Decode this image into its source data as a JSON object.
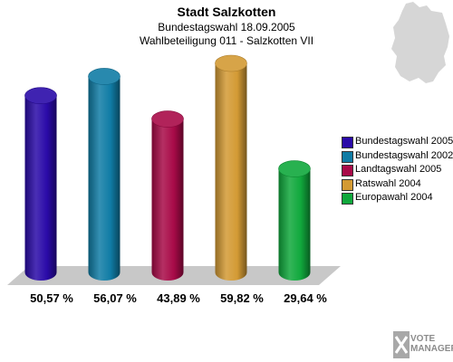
{
  "header": {
    "title": "Stadt Salzkotten",
    "subtitle1": "Bundestagswahl 18.09.2005",
    "subtitle2": "Wahlbeteiligung 011 - Salzkotten VII"
  },
  "chart_data": {
    "type": "bar",
    "title": "Stadt Salzkotten",
    "categories": [
      "Bundestagswahl 2005",
      "Bundestagswahl 2002",
      "Landtagswahl 2005",
      "Ratswahl 2004",
      "Europawahl 2004"
    ],
    "values": [
      50.57,
      56.07,
      43.89,
      59.82,
      29.64
    ],
    "value_labels": [
      "50,57 %",
      "56,07 %",
      "43,89 %",
      "59,82 %",
      "29,64 %"
    ],
    "colors": [
      "#2a0aa8",
      "#107ca5",
      "#a80a48",
      "#d39a34",
      "#10a83c"
    ],
    "ylim": [
      0,
      60
    ],
    "legend_position": "right",
    "grid": false
  },
  "legend": {
    "items": [
      {
        "label": "Bundestagswahl 2005",
        "color": "#2a0aa8"
      },
      {
        "label": "Bundestagswahl 2002",
        "color": "#107ca5"
      },
      {
        "label": "Landtagswahl 2005",
        "color": "#a80a48"
      },
      {
        "label": "Ratswahl 2004",
        "color": "#d39a34"
      },
      {
        "label": "Europawahl 2004",
        "color": "#10a83c"
      }
    ]
  },
  "branding": {
    "logo_line1": "VOTE",
    "logo_line2": "MANAGER"
  },
  "decor": {
    "map_icon": "germany-map-icon",
    "logo_icon": "vote-manager-logo-icon"
  }
}
